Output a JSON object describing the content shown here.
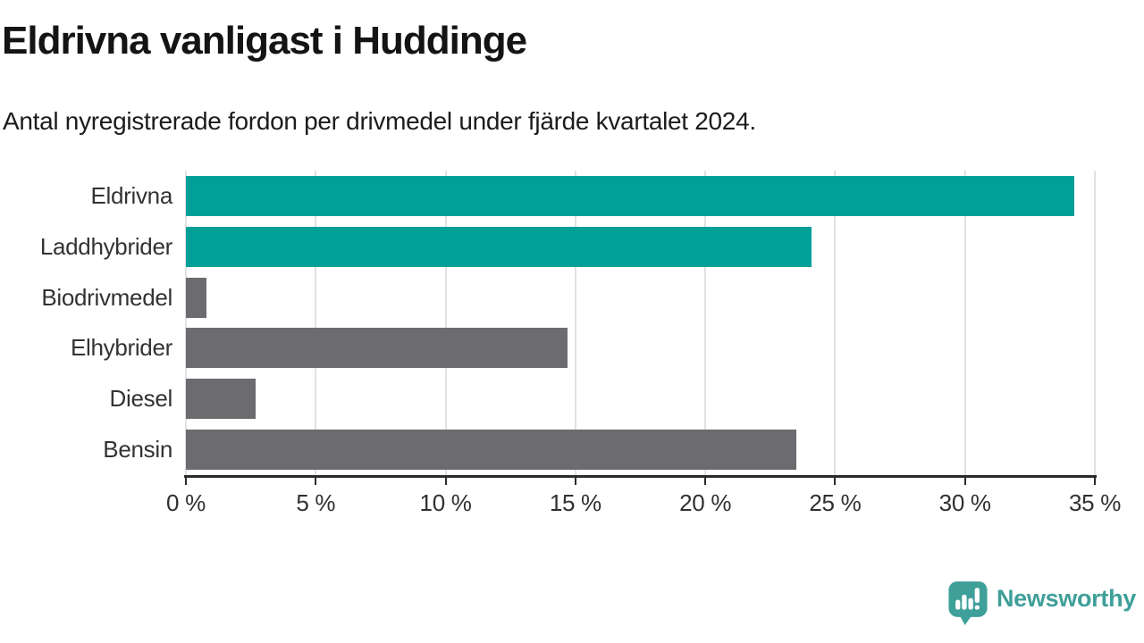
{
  "title": "Eldrivna vanligast i Huddinge",
  "subtitle": "Antal nyregistrerade fordon per drivmedel under fjärde kvartalet 2024.",
  "chart_data": {
    "type": "bar",
    "orientation": "horizontal",
    "title": "Eldrivna vanligast i Huddinge",
    "subtitle": "Antal nyregistrerade fordon per drivmedel under fjärde kvartalet 2024.",
    "categories": [
      "Eldrivna",
      "Laddhybrider",
      "Biodrivmedel",
      "Elhybrider",
      "Diesel",
      "Bensin"
    ],
    "values": [
      34.2,
      24.1,
      0.8,
      14.7,
      2.7,
      23.5
    ],
    "unit": "%",
    "bar_colors": [
      "#00a099",
      "#00a099",
      "#6b6b70",
      "#6b6b70",
      "#6b6b70",
      "#6b6b70"
    ],
    "xlim": [
      0,
      35
    ],
    "ticks": [
      {
        "value": 0,
        "label": "0 %"
      },
      {
        "value": 5,
        "label": "5 %"
      },
      {
        "value": 10,
        "label": "10 %"
      },
      {
        "value": 15,
        "label": "15 %"
      },
      {
        "value": 20,
        "label": "20 %"
      },
      {
        "value": 25,
        "label": "25 %"
      },
      {
        "value": 30,
        "label": "30 %"
      },
      {
        "value": 35,
        "label": "35 %"
      }
    ],
    "grid": "vertical",
    "legend": "none"
  },
  "colors": {
    "accent_teal": "#00a099",
    "neutral_gray": "#6b6b70",
    "gridline": "#e2e2e2",
    "axis": "#2b2b2b",
    "logo_teal": "#3f9f99"
  },
  "branding": {
    "logo_text": "Newsworthy",
    "logo_icon": "bar-chart-speech-bubble-icon"
  }
}
